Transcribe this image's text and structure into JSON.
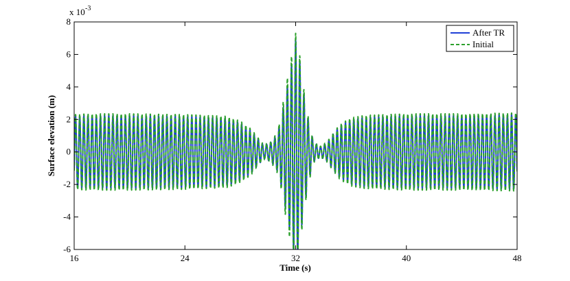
{
  "chart_data": {
    "type": "line",
    "xlabel": "Time (s)",
    "ylabel": "Surface elevation (m)",
    "y_multiplier_label": "x 10",
    "y_multiplier_exponent": "-3",
    "xlim": [
      16,
      48
    ],
    "ylim": [
      -6,
      8
    ],
    "x_ticks": [
      16,
      24,
      32,
      40,
      48
    ],
    "y_ticks": [
      -6,
      -4,
      -2,
      0,
      2,
      4,
      6,
      8
    ],
    "grid": false,
    "legend_position": "top-right",
    "series": [
      {
        "name": "After TR",
        "color": "#1f3fd6",
        "line_style": "solid",
        "wave_period_s": 0.3,
        "envelope": {
          "t": [
            16,
            17,
            20,
            24,
            27,
            28,
            28.8,
            29.3,
            29.7,
            30.2,
            30.6,
            30.9,
            31.2,
            31.5,
            31.8,
            32.0,
            32.2,
            32.4,
            32.7,
            33.0,
            33.3,
            33.8,
            34.3,
            34.7,
            35.2,
            36,
            37,
            40,
            44,
            48
          ],
          "amplitude_mm": [
            2.2,
            2.25,
            2.25,
            2.2,
            2.1,
            1.8,
            1.3,
            0.8,
            0.4,
            0.6,
            1.0,
            1.8,
            3.2,
            4.5,
            5.8,
            6.9,
            6.3,
            4.8,
            3.0,
            1.6,
            0.6,
            0.3,
            0.6,
            1.1,
            1.6,
            2.0,
            2.15,
            2.25,
            2.25,
            2.3
          ]
        }
      },
      {
        "name": "Initial",
        "color": "#2ca02c",
        "line_style": "dashed",
        "wave_period_s": 0.3,
        "envelope": {
          "t": [
            16,
            17,
            20,
            24,
            27,
            28,
            28.8,
            29.3,
            29.7,
            30.2,
            30.6,
            30.9,
            31.2,
            31.5,
            31.8,
            32.0,
            32.2,
            32.4,
            32.7,
            33.0,
            33.3,
            33.8,
            34.3,
            34.7,
            35.2,
            36,
            37,
            40,
            44,
            48
          ],
          "amplitude_mm": [
            2.3,
            2.35,
            2.35,
            2.3,
            2.2,
            1.9,
            1.4,
            0.85,
            0.45,
            0.65,
            1.1,
            2.0,
            3.6,
            5.0,
            6.3,
            7.3,
            6.7,
            5.1,
            3.2,
            1.7,
            0.65,
            0.35,
            0.65,
            1.15,
            1.7,
            2.1,
            2.25,
            2.35,
            2.35,
            2.4
          ]
        }
      }
    ]
  }
}
